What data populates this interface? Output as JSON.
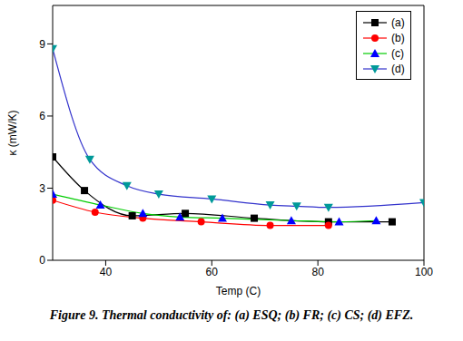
{
  "chart_data": {
    "type": "line",
    "title": "Figure 9. Thermal conductivity of: (a) ESQ; (b) FR; (c) CS; (d) EFZ.",
    "x_label": "Temp (C)",
    "y_label": "κ (mW/K)",
    "xlim": [
      30,
      100
    ],
    "xticks": [
      40,
      60,
      80,
      100
    ],
    "ylim": [
      0,
      10.6
    ],
    "yticks": [
      0,
      3,
      6,
      9
    ],
    "legend": "upper right",
    "grid": false,
    "series": [
      {
        "name": "(a)",
        "color": "#000000",
        "marker": "square",
        "x": [
          30,
          36,
          45,
          55,
          68,
          82,
          94
        ],
        "values": [
          4.3,
          2.9,
          1.85,
          1.95,
          1.75,
          1.6,
          1.6
        ]
      },
      {
        "name": "(b)",
        "color": "#ff0000",
        "marker": "circle",
        "x": [
          30,
          38,
          47,
          58,
          71,
          82
        ],
        "values": [
          2.5,
          2.0,
          1.75,
          1.6,
          1.45,
          1.45
        ]
      },
      {
        "name": "(c)",
        "color": "#00cc00",
        "marker": "triangle",
        "x": [
          30,
          39,
          47,
          54,
          62,
          75,
          84,
          91
        ],
        "values": [
          2.75,
          2.3,
          1.95,
          1.8,
          1.75,
          1.65,
          1.6,
          1.65
        ]
      },
      {
        "name": "(d)",
        "color": "#3333cc",
        "marker": "triangle_down",
        "x": [
          30,
          37,
          44,
          50,
          60,
          71,
          76,
          82,
          100
        ],
        "values": [
          8.8,
          4.2,
          3.1,
          2.75,
          2.55,
          2.3,
          2.25,
          2.2,
          2.4
        ]
      }
    ]
  }
}
